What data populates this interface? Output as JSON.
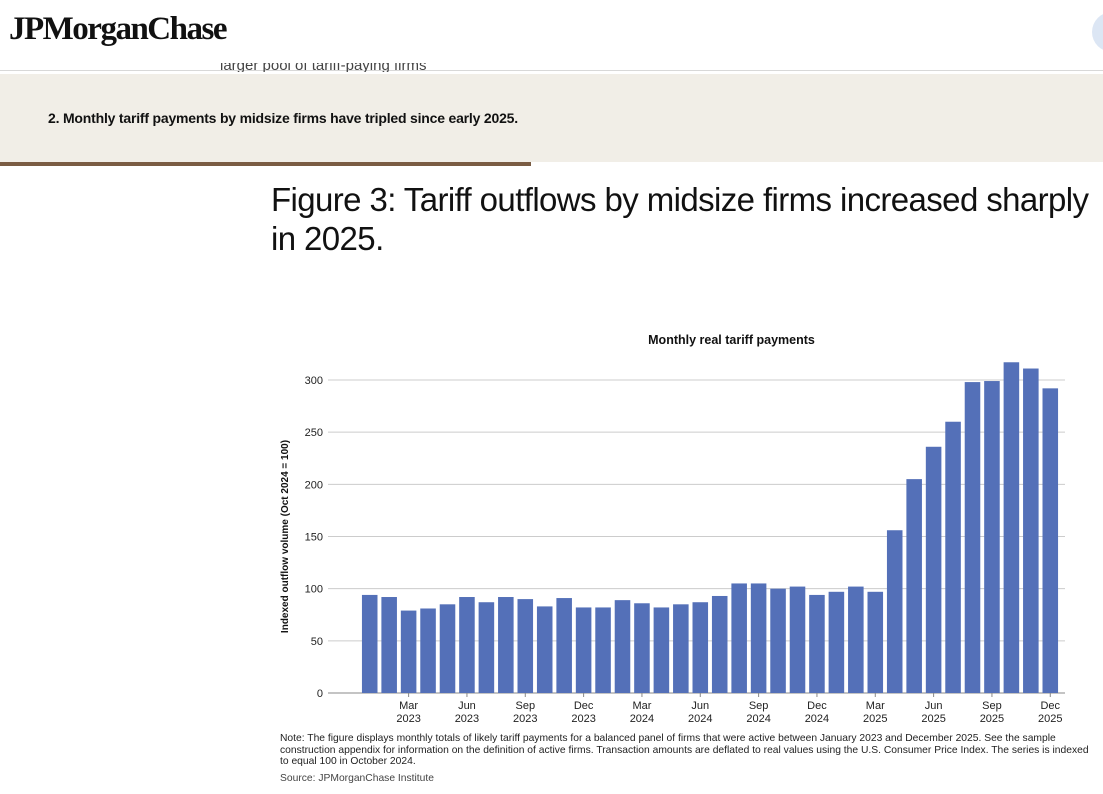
{
  "header": {
    "logo": "JPMorganChase",
    "peek_text": "larger pool of tariff-paying firms"
  },
  "section": {
    "title": "2. Monthly tariff payments by midsize firms have tripled since early 2025."
  },
  "figure": {
    "title": "Figure 3: Tariff outflows by midsize firms increased sharply in 2025.",
    "note": "Note: The figure displays monthly totals of likely tariff payments for a balanced panel of firms that were active between January 2023 and December 2025. See the sample construction appendix for information on the definition of active firms. Transaction amounts are deflated to real values using the U.S. Consumer Price Index. The series is indexed to equal 100 in October 2024.",
    "source": "Source: JPMorganChase Institute"
  },
  "colors": {
    "bar": "#5470b8",
    "grid": "#cccccc",
    "band": "#f1eee7",
    "rule": "#7a5c43"
  },
  "chart_data": {
    "type": "bar",
    "title": "Monthly real tariff payments",
    "ylabel": "Indexed outflow volume (Oct 2024 = 100)",
    "xlabel": "",
    "ylim": [
      0,
      300
    ],
    "yticks": [
      0,
      50,
      100,
      150,
      200,
      250,
      300
    ],
    "grid": true,
    "categories": [
      "Jan 2023",
      "Feb 2023",
      "Mar 2023",
      "Apr 2023",
      "May 2023",
      "Jun 2023",
      "Jul 2023",
      "Aug 2023",
      "Sep 2023",
      "Oct 2023",
      "Nov 2023",
      "Dec 2023",
      "Jan 2024",
      "Feb 2024",
      "Mar 2024",
      "Apr 2024",
      "May 2024",
      "Jun 2024",
      "Jul 2024",
      "Aug 2024",
      "Sep 2024",
      "Oct 2024",
      "Nov 2024",
      "Dec 2024",
      "Jan 2025",
      "Feb 2025",
      "Mar 2025",
      "Apr 2025",
      "May 2025",
      "Jun 2025",
      "Jul 2025",
      "Aug 2025",
      "Sep 2025",
      "Oct 2025",
      "Nov 2025",
      "Dec 2025"
    ],
    "values": [
      94,
      92,
      79,
      81,
      85,
      92,
      87,
      92,
      90,
      83,
      91,
      82,
      82,
      89,
      86,
      82,
      85,
      87,
      93,
      105,
      105,
      100,
      102,
      94,
      97,
      102,
      97,
      156,
      205,
      236,
      260,
      298,
      299,
      317,
      311,
      292
    ],
    "x_tick_labels": [
      {
        "index": 2,
        "month": "Mar",
        "year": "2023"
      },
      {
        "index": 5,
        "month": "Jun",
        "year": "2023"
      },
      {
        "index": 8,
        "month": "Sep",
        "year": "2023"
      },
      {
        "index": 11,
        "month": "Dec",
        "year": "2023"
      },
      {
        "index": 14,
        "month": "Mar",
        "year": "2024"
      },
      {
        "index": 17,
        "month": "Jun",
        "year": "2024"
      },
      {
        "index": 20,
        "month": "Sep",
        "year": "2024"
      },
      {
        "index": 23,
        "month": "Dec",
        "year": "2024"
      },
      {
        "index": 26,
        "month": "Mar",
        "year": "2025"
      },
      {
        "index": 29,
        "month": "Jun",
        "year": "2025"
      },
      {
        "index": 32,
        "month": "Sep",
        "year": "2025"
      },
      {
        "index": 35,
        "month": "Dec",
        "year": "2025"
      }
    ]
  }
}
